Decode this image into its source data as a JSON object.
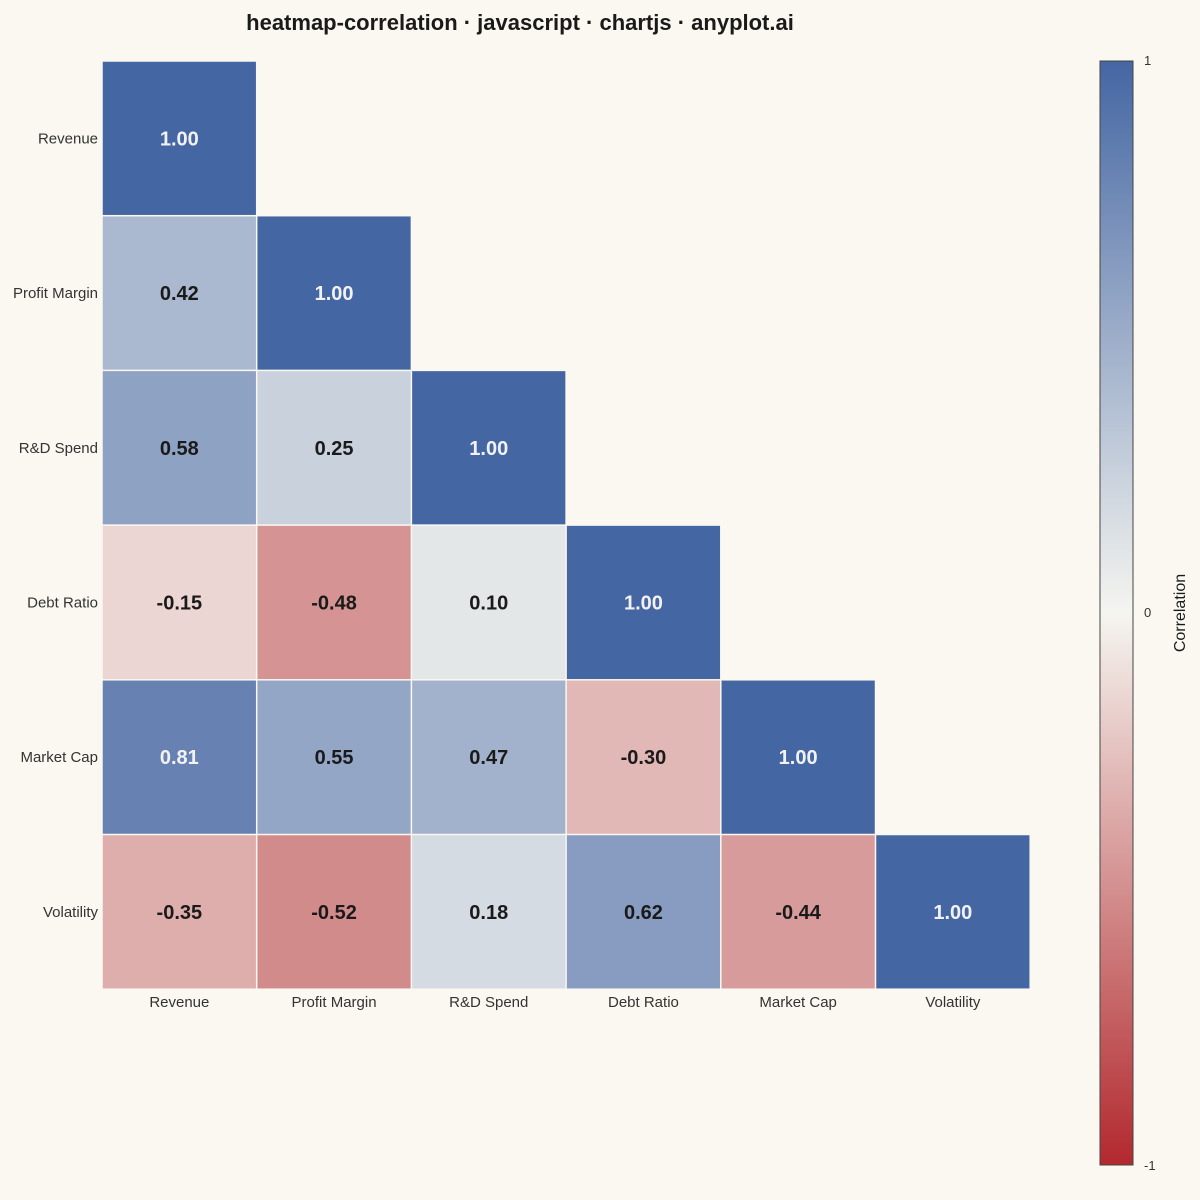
{
  "chart_data": {
    "type": "heatmap",
    "title": "heatmap-correlation · javascript · chartjs · anyplot.ai",
    "variables": [
      "Revenue",
      "Profit Margin",
      "R&D Spend",
      "Debt Ratio",
      "Market Cap",
      "Volatility"
    ],
    "cells": [
      {
        "row": "Revenue",
        "col": "Revenue",
        "value": 1.0,
        "label": "1.00"
      },
      {
        "row": "Profit Margin",
        "col": "Revenue",
        "value": 0.42,
        "label": "0.42"
      },
      {
        "row": "Profit Margin",
        "col": "Profit Margin",
        "value": 1.0,
        "label": "1.00"
      },
      {
        "row": "R&D Spend",
        "col": "Revenue",
        "value": 0.58,
        "label": "0.58"
      },
      {
        "row": "R&D Spend",
        "col": "Profit Margin",
        "value": 0.25,
        "label": "0.25"
      },
      {
        "row": "R&D Spend",
        "col": "R&D Spend",
        "value": 1.0,
        "label": "1.00"
      },
      {
        "row": "Debt Ratio",
        "col": "Revenue",
        "value": -0.15,
        "label": "-0.15"
      },
      {
        "row": "Debt Ratio",
        "col": "Profit Margin",
        "value": -0.48,
        "label": "-0.48"
      },
      {
        "row": "Debt Ratio",
        "col": "R&D Spend",
        "value": 0.1,
        "label": "0.10"
      },
      {
        "row": "Debt Ratio",
        "col": "Debt Ratio",
        "value": 1.0,
        "label": "1.00"
      },
      {
        "row": "Market Cap",
        "col": "Revenue",
        "value": 0.81,
        "label": "0.81"
      },
      {
        "row": "Market Cap",
        "col": "Profit Margin",
        "value": 0.55,
        "label": "0.55"
      },
      {
        "row": "Market Cap",
        "col": "R&D Spend",
        "value": 0.47,
        "label": "0.47"
      },
      {
        "row": "Market Cap",
        "col": "Debt Ratio",
        "value": -0.3,
        "label": "-0.30"
      },
      {
        "row": "Market Cap",
        "col": "Market Cap",
        "value": 1.0,
        "label": "1.00"
      },
      {
        "row": "Volatility",
        "col": "Revenue",
        "value": -0.35,
        "label": "-0.35"
      },
      {
        "row": "Volatility",
        "col": "Profit Margin",
        "value": -0.52,
        "label": "-0.52"
      },
      {
        "row": "Volatility",
        "col": "R&D Spend",
        "value": 0.18,
        "label": "0.18"
      },
      {
        "row": "Volatility",
        "col": "Debt Ratio",
        "value": 0.62,
        "label": "0.62"
      },
      {
        "row": "Volatility",
        "col": "Market Cap",
        "value": -0.44,
        "label": "-0.44"
      },
      {
        "row": "Volatility",
        "col": "Volatility",
        "value": 1.0,
        "label": "1.00"
      }
    ],
    "mask": "lower-triangle",
    "colorbar": {
      "title": "Correlation",
      "range": [
        -1,
        1
      ],
      "ticks": [
        "1",
        "0",
        "-1"
      ],
      "colors": {
        "negative": "#B2292E",
        "neutral": "#F5F5F0",
        "positive": "#4466A3"
      }
    },
    "grid": false,
    "legend": "colorbar-right"
  }
}
